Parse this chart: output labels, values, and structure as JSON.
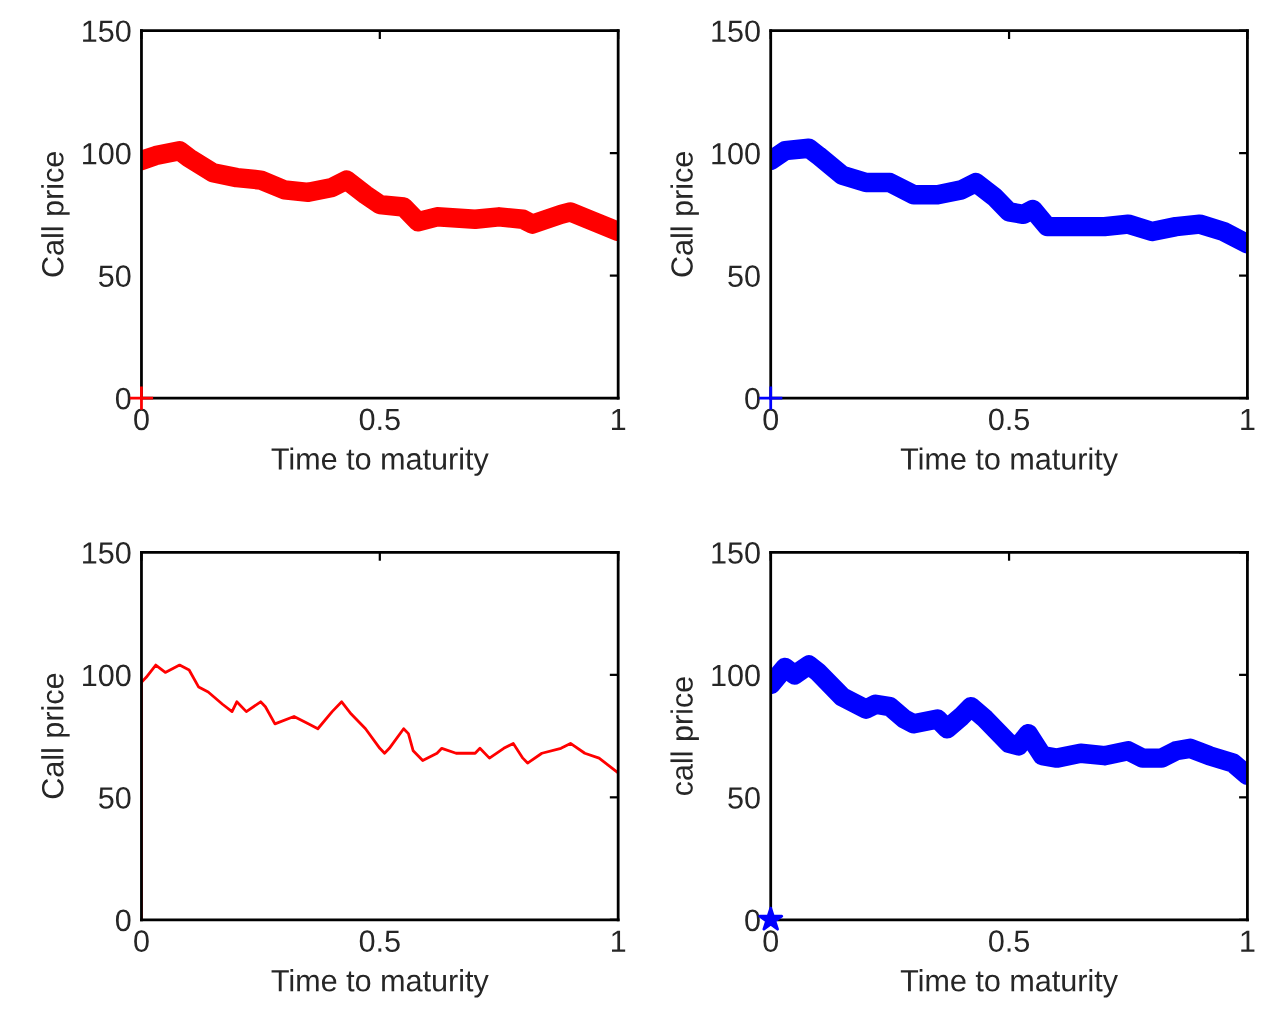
{
  "chart_data": [
    {
      "type": "line",
      "xlabel": "Time to maturity",
      "ylabel": "Call price",
      "xlim": [
        0,
        1
      ],
      "ylim": [
        0,
        150
      ],
      "xticks": [
        0,
        0.5,
        1
      ],
      "yticks": [
        0,
        50,
        100,
        150
      ],
      "grid": false,
      "legend": false,
      "series": [
        {
          "color": "#ff0000",
          "x": [
            0,
            0.03,
            0.08,
            0.1,
            0.15,
            0.2,
            0.25,
            0.3,
            0.35,
            0.4,
            0.43,
            0.47,
            0.5,
            0.55,
            0.58,
            0.62,
            0.7,
            0.75,
            0.8,
            0.82,
            0.88,
            0.9,
            0.95,
            1.0
          ],
          "values": [
            97,
            99,
            101,
            98,
            92,
            90,
            89,
            85,
            84,
            86,
            89,
            83,
            79,
            78,
            72,
            74,
            73,
            74,
            73,
            71,
            75,
            76,
            72,
            68
          ]
        },
        {
          "type": "scatter",
          "color": "#ff0000",
          "marker": "cross",
          "x": [
            0
          ],
          "values": [
            0
          ]
        }
      ]
    },
    {
      "type": "line",
      "xlabel": "Time to maturity",
      "ylabel": "Call price",
      "xlim": [
        0,
        1
      ],
      "ylim": [
        0,
        150
      ],
      "xticks": [
        0,
        0.5,
        1
      ],
      "yticks": [
        0,
        50,
        100,
        150
      ],
      "grid": false,
      "legend": false,
      "series": [
        {
          "color": "#0000ff",
          "x": [
            0,
            0.03,
            0.08,
            0.1,
            0.15,
            0.2,
            0.25,
            0.3,
            0.35,
            0.4,
            0.43,
            0.47,
            0.5,
            0.53,
            0.55,
            0.58,
            0.65,
            0.7,
            0.75,
            0.8,
            0.85,
            0.9,
            0.95,
            1.0
          ],
          "values": [
            97,
            101,
            102,
            99,
            91,
            88,
            88,
            83,
            83,
            85,
            88,
            82,
            76,
            75,
            77,
            70,
            70,
            70,
            71,
            68,
            70,
            71,
            68,
            63
          ]
        },
        {
          "type": "scatter",
          "color": "#0000ff",
          "marker": "cross",
          "x": [
            0
          ],
          "values": [
            0
          ]
        }
      ]
    },
    {
      "type": "line",
      "xlabel": "Time to maturity",
      "ylabel": "Call price",
      "xlim": [
        0,
        1
      ],
      "ylim": [
        0,
        150
      ],
      "xticks": [
        0,
        0.5,
        1
      ],
      "yticks": [
        0,
        50,
        100,
        150
      ],
      "grid": false,
      "legend": false,
      "series": [
        {
          "color": "#ff0000",
          "x": [
            0,
            0,
            0.01,
            0.03,
            0.05,
            0.08,
            0.1,
            0.12,
            0.14,
            0.17,
            0.19,
            0.2,
            0.22,
            0.25,
            0.26,
            0.28,
            0.32,
            0.35,
            0.37,
            0.4,
            0.42,
            0.44,
            0.47,
            0.5,
            0.51,
            0.52,
            0.55,
            0.56,
            0.57,
            0.59,
            0.62,
            0.63,
            0.66,
            0.7,
            0.71,
            0.73,
            0.76,
            0.78,
            0.8,
            0.81,
            0.84,
            0.88,
            0.9,
            0.93,
            0.96,
            1.0
          ],
          "values": [
            0,
            97,
            99,
            104,
            101,
            104,
            102,
            95,
            93,
            88,
            85,
            89,
            85,
            89,
            87,
            80,
            83,
            80,
            78,
            85,
            89,
            84,
            78,
            70,
            68,
            70,
            78,
            76,
            69,
            65,
            68,
            70,
            68,
            68,
            70,
            66,
            70,
            72,
            66,
            64,
            68,
            70,
            72,
            68,
            66,
            60
          ]
        }
      ]
    },
    {
      "type": "line",
      "xlabel": "Time to maturity",
      "ylabel": "call price",
      "xlim": [
        0,
        1
      ],
      "ylim": [
        0,
        150
      ],
      "xticks": [
        0,
        0.5,
        1
      ],
      "yticks": [
        0,
        50,
        100,
        150
      ],
      "grid": false,
      "legend": false,
      "series": [
        {
          "color": "#0000ff",
          "x": [
            0,
            0.03,
            0.05,
            0.08,
            0.1,
            0.15,
            0.2,
            0.22,
            0.25,
            0.28,
            0.3,
            0.35,
            0.37,
            0.4,
            0.42,
            0.45,
            0.5,
            0.52,
            0.54,
            0.57,
            0.6,
            0.65,
            0.7,
            0.75,
            0.78,
            0.82,
            0.85,
            0.88,
            0.92,
            0.97,
            1.0
          ],
          "values": [
            96,
            103,
            100,
            104,
            101,
            91,
            86,
            88,
            87,
            82,
            80,
            82,
            78,
            83,
            87,
            82,
            72,
            71,
            76,
            67,
            66,
            68,
            67,
            69,
            66,
            66,
            69,
            70,
            67,
            64,
            59
          ]
        },
        {
          "type": "scatter",
          "color": "#0000ff",
          "marker": "star",
          "x": [
            0
          ],
          "values": [
            0
          ]
        }
      ]
    }
  ]
}
